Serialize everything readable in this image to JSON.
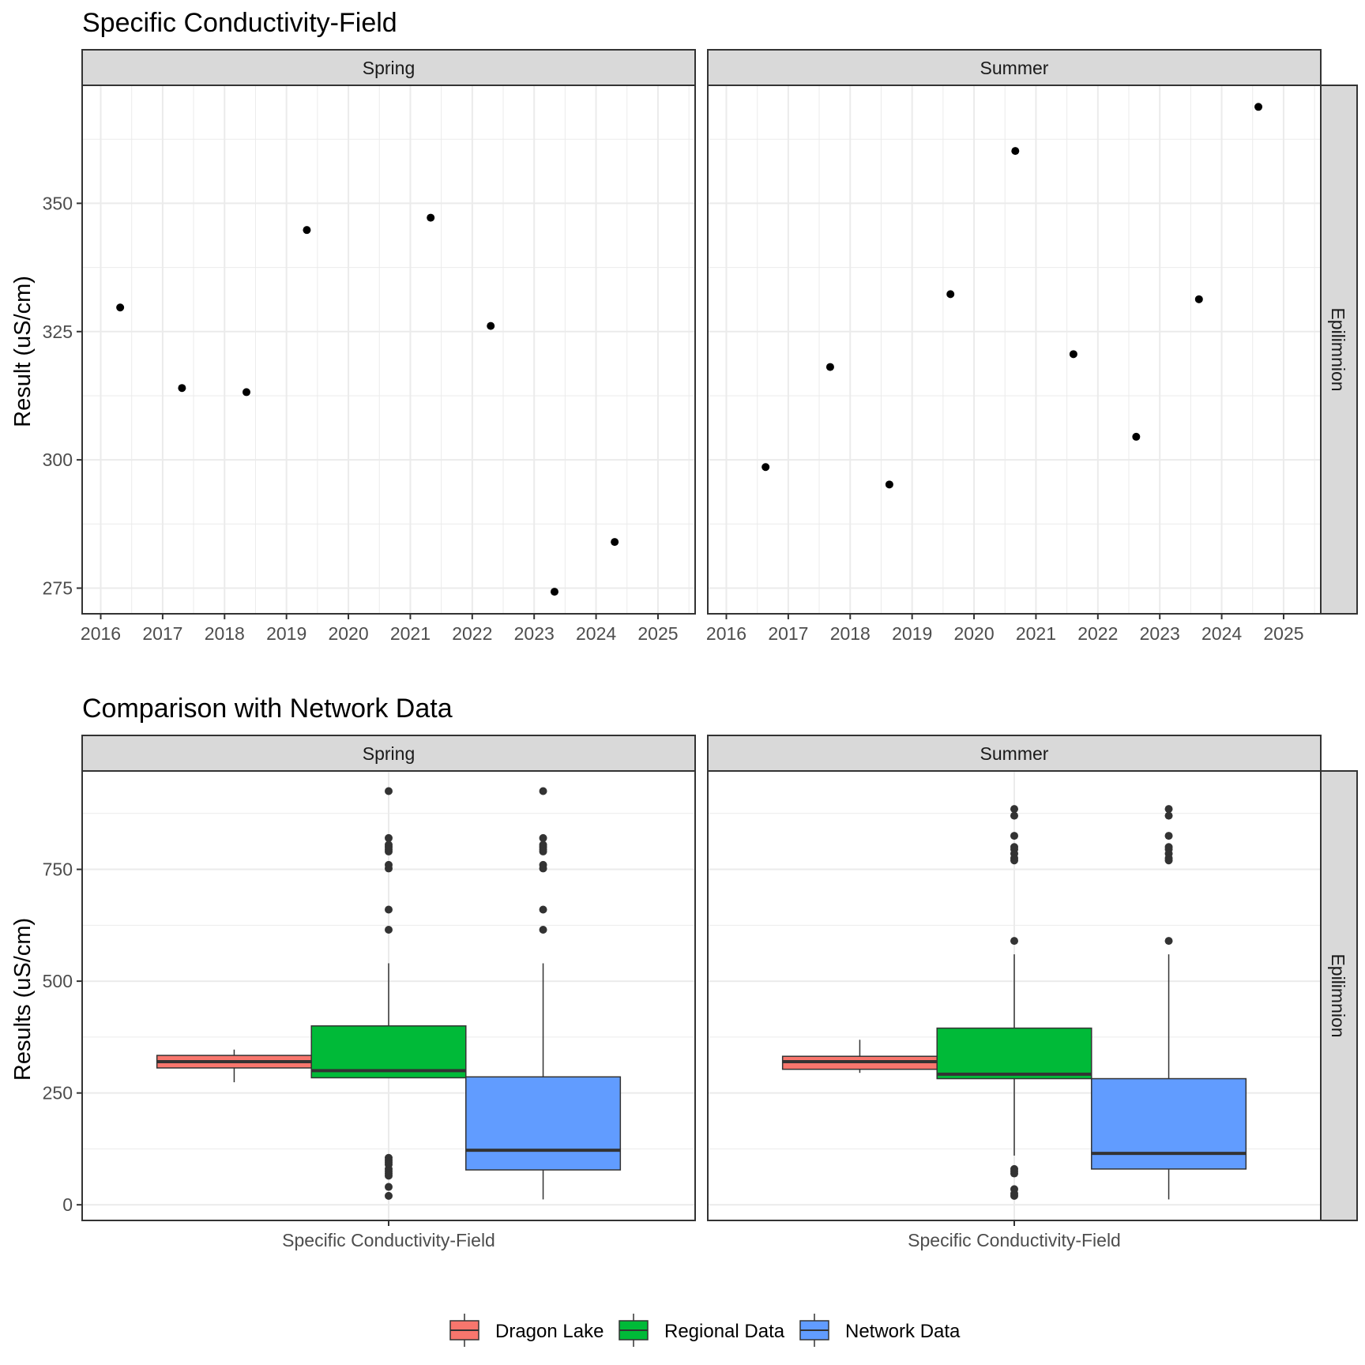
{
  "chart_data": [
    {
      "type": "scatter",
      "title": "Specific Conductivity-Field",
      "ylabel": "Result (uS/cm)",
      "xlabel": "",
      "facet_rows": [
        "Epilimnion"
      ],
      "xlim": [
        2015.7,
        2025.6
      ],
      "ylim": [
        270,
        373
      ],
      "x_ticks": [
        "2016",
        "2017",
        "2018",
        "2019",
        "2020",
        "2021",
        "2022",
        "2023",
        "2024",
        "2025"
      ],
      "y_ticks": [
        "275",
        "300",
        "325",
        "350"
      ],
      "grid": true,
      "panels": [
        {
          "strip": "Spring",
          "row": "Epilimnion",
          "x": [
            "2016-04-25",
            "2017-04-25",
            "2018-05-10",
            "2019-05-01",
            "2021-05-01",
            "2022-04-20",
            "2023-05-01",
            "2024-04-20"
          ],
          "y": [
            329.7,
            314.0,
            313.2,
            344.8,
            347.2,
            326.1,
            274.3,
            284.0
          ]
        },
        {
          "strip": "Summer",
          "row": "Epilimnion",
          "x": [
            "2016-08-20",
            "2017-09-05",
            "2018-08-20",
            "2019-08-15",
            "2020-09-01",
            "2021-08-10",
            "2022-08-15",
            "2023-08-20",
            "2024-08-05"
          ],
          "y": [
            298.6,
            318.1,
            295.2,
            332.3,
            360.2,
            320.6,
            304.5,
            331.3,
            368.8
          ]
        }
      ]
    },
    {
      "type": "box",
      "title": "Comparison with Network Data",
      "ylabel": "Results (uS/cm)",
      "xlabel": "",
      "category": "Specific Conductivity-Field",
      "facet_rows": [
        "Epilimnion"
      ],
      "ylim": [
        -35,
        970
      ],
      "y_ticks": [
        "0",
        "250",
        "500",
        "750"
      ],
      "grid": true,
      "legend_position": "bottom",
      "legend": [
        {
          "name": "Dragon Lake",
          "color": "#F8766D"
        },
        {
          "name": "Regional Data",
          "color": "#00BA38"
        },
        {
          "name": "Network Data",
          "color": "#619CFF"
        }
      ],
      "panels": [
        {
          "strip": "Spring",
          "row": "Epilimnion",
          "series": [
            {
              "name": "Dragon Lake",
              "min": 274,
              "q1": 306,
              "median": 320,
              "q3": 334,
              "max": 347,
              "outliers": []
            },
            {
              "name": "Regional Data",
              "min": 284,
              "q1": 284,
              "median": 300,
              "q3": 400,
              "max": 540,
              "outliers": [
                925,
                820,
                805,
                800,
                795,
                790,
                760,
                752,
                660,
                615,
                105,
                100,
                95,
                90,
                80,
                75,
                70,
                65,
                40,
                20
              ]
            },
            {
              "name": "Network Data",
              "min": 12,
              "q1": 78,
              "median": 122,
              "q3": 286,
              "max": 540,
              "outliers": [
                925,
                820,
                805,
                800,
                795,
                790,
                760,
                752,
                660,
                615
              ]
            }
          ]
        },
        {
          "strip": "Summer",
          "row": "Epilimnion",
          "series": [
            {
              "name": "Dragon Lake",
              "min": 295,
              "q1": 303,
              "median": 320,
              "q3": 332,
              "max": 369,
              "outliers": []
            },
            {
              "name": "Regional Data",
              "min": 110,
              "q1": 282,
              "median": 292,
              "q3": 395,
              "max": 560,
              "outliers": [
                885,
                870,
                825,
                800,
                795,
                785,
                775,
                770,
                590,
                80,
                75,
                70,
                35,
                25,
                20
              ]
            },
            {
              "name": "Network Data",
              "min": 12,
              "q1": 80,
              "median": 115,
              "q3": 282,
              "max": 560,
              "outliers": [
                885,
                870,
                825,
                800,
                795,
                785,
                775,
                770,
                590
              ]
            }
          ]
        }
      ]
    }
  ]
}
